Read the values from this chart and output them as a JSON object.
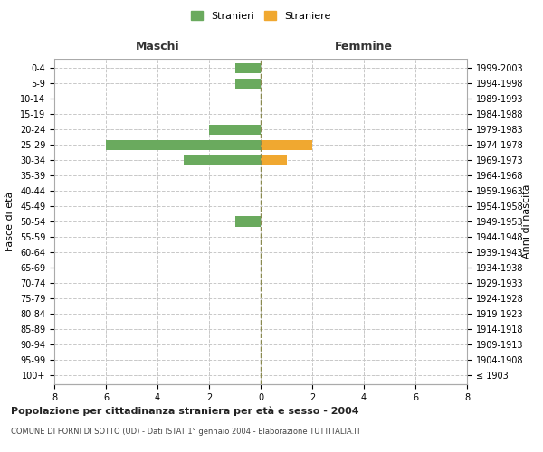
{
  "age_groups": [
    "100+",
    "95-99",
    "90-94",
    "85-89",
    "80-84",
    "75-79",
    "70-74",
    "65-69",
    "60-64",
    "55-59",
    "50-54",
    "45-49",
    "40-44",
    "35-39",
    "30-34",
    "25-29",
    "20-24",
    "15-19",
    "10-14",
    "5-9",
    "0-4"
  ],
  "birth_years": [
    "≤ 1903",
    "1904-1908",
    "1909-1913",
    "1914-1918",
    "1919-1923",
    "1924-1928",
    "1929-1933",
    "1934-1938",
    "1939-1943",
    "1944-1948",
    "1949-1953",
    "1954-1958",
    "1959-1963",
    "1964-1968",
    "1969-1973",
    "1974-1978",
    "1979-1983",
    "1984-1988",
    "1989-1993",
    "1994-1998",
    "1999-2003"
  ],
  "maschi_stranieri": [
    0,
    0,
    0,
    0,
    0,
    0,
    0,
    0,
    0,
    0,
    1,
    0,
    0,
    0,
    3,
    6,
    2,
    0,
    0,
    1,
    1
  ],
  "femmine_straniere": [
    0,
    0,
    0,
    0,
    0,
    0,
    0,
    0,
    0,
    0,
    0,
    0,
    0,
    0,
    1,
    2,
    0,
    0,
    0,
    0,
    0
  ],
  "color_maschi": "#6aaa5e",
  "color_femmine": "#f0a830",
  "background_color": "#ffffff",
  "grid_color": "#c8c8c8",
  "title": "Popolazione per cittadinanza straniera per età e sesso - 2004",
  "subtitle": "COMUNE DI FORNI DI SOTTO (UD) - Dati ISTAT 1° gennaio 2004 - Elaborazione TUTTITALIA.IT",
  "xlabel_left": "Maschi",
  "xlabel_right": "Femmine",
  "ylabel_left": "Fasce di età",
  "ylabel_right": "Anni di nascita",
  "legend_maschi": "Stranieri",
  "legend_femmine": "Straniere",
  "xlim": 8
}
